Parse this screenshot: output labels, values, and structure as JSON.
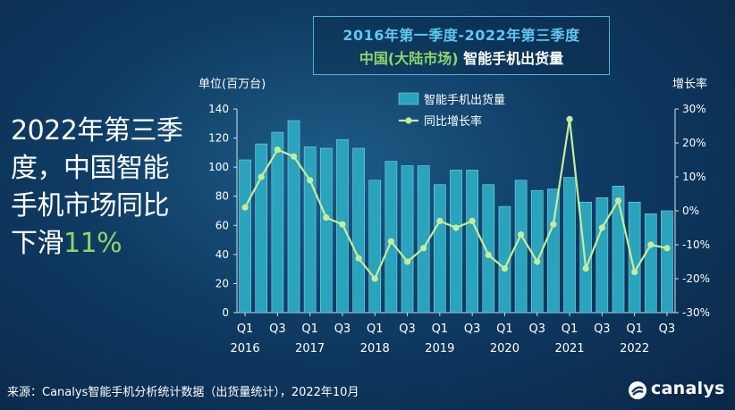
{
  "title": {
    "line1": "2016年第一季度-2022年第三季度",
    "line2_prefix": "中国(大陆市场)",
    "line2_suffix": " 智能手机出货量"
  },
  "headline": {
    "main": "2022年第三季度，中国智能手机市场同比下滑",
    "pct": "11%"
  },
  "source": "来源：Canalys智能手机分析统计数据（出货量统计），2022年10月",
  "logo": "canalys",
  "colors": {
    "bar": "#2aa3bd",
    "line": "#c6ec9a",
    "accent": "#8ed66b",
    "title_blue": "#5ec8f0"
  },
  "chart_data": {
    "type": "bar",
    "y_unit_label": "单位(百万台)",
    "y2_label": "增长率",
    "ylim": [
      0,
      140
    ],
    "y_ticks": [
      "0",
      "20",
      "40",
      "60",
      "80",
      "100",
      "120",
      "140"
    ],
    "y2lim": [
      -30,
      30
    ],
    "y2_ticks": [
      "-30%",
      "-20%",
      "-10%",
      "0%",
      "10%",
      "20%",
      "30%"
    ],
    "x_tick_labels": [
      {
        "label": "Q1",
        "year": "2016"
      },
      {
        "label": "Q3",
        "year": ""
      },
      {
        "label": "Q1",
        "year": "2017"
      },
      {
        "label": "Q3",
        "year": ""
      },
      {
        "label": "Q1",
        "year": "2018"
      },
      {
        "label": "Q3",
        "year": ""
      },
      {
        "label": "Q1",
        "year": "2019"
      },
      {
        "label": "Q3",
        "year": ""
      },
      {
        "label": "Q1",
        "year": "2020"
      },
      {
        "label": "Q3",
        "year": ""
      },
      {
        "label": "Q1",
        "year": "2021"
      },
      {
        "label": "Q3",
        "year": ""
      },
      {
        "label": "Q1",
        "year": "2022"
      },
      {
        "label": "Q3",
        "year": ""
      }
    ],
    "categories": [
      "2016 Q1",
      "2016 Q2",
      "2016 Q3",
      "2016 Q4",
      "2017 Q1",
      "2017 Q2",
      "2017 Q3",
      "2017 Q4",
      "2018 Q1",
      "2018 Q2",
      "2018 Q3",
      "2018 Q4",
      "2019 Q1",
      "2019 Q2",
      "2019 Q3",
      "2019 Q4",
      "2020 Q1",
      "2020 Q2",
      "2020 Q3",
      "2020 Q4",
      "2021 Q1",
      "2021 Q2",
      "2021 Q3",
      "2021 Q4",
      "2022 Q1",
      "2022 Q2",
      "2022 Q3"
    ],
    "series": [
      {
        "name": "智能手机出货量",
        "type": "bar",
        "axis": "left",
        "values": [
          105,
          116,
          124,
          132,
          114,
          113,
          119,
          113,
          91,
          104,
          101,
          101,
          88,
          98,
          98,
          88,
          73,
          91,
          84,
          85,
          93,
          76,
          79,
          87,
          76,
          68,
          70
        ]
      },
      {
        "name": "同比增长率",
        "type": "line",
        "axis": "right",
        "values": [
          1,
          10,
          18,
          16,
          9,
          -2,
          -4,
          -14,
          -20,
          -9,
          -15,
          -11,
          -3,
          -5,
          -3,
          -13,
          -17,
          -7,
          -15,
          -4,
          27,
          -17,
          -5,
          3,
          -18,
          -10,
          -11
        ]
      }
    ],
    "legend_position": "top-center"
  }
}
